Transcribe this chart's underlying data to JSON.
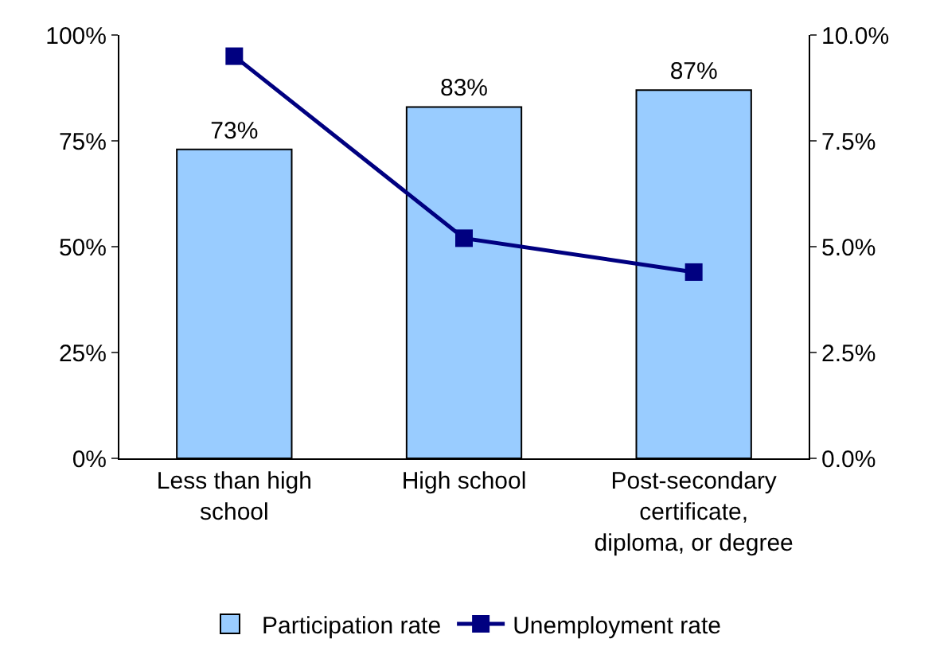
{
  "chart_data": {
    "type": "bar",
    "categories": [
      "Less than high school",
      "High school",
      "Post-secondary certificate, diploma, or degree"
    ],
    "series": [
      {
        "name": "Participation rate",
        "color": "#99ccff",
        "values": [
          73,
          83,
          87
        ],
        "value_labels": [
          "73%",
          "83%",
          "87%"
        ]
      },
      {
        "name": "Unemployment rate",
        "type": "line",
        "axis": "y2",
        "color": "#000080",
        "values": [
          9.5,
          5.2,
          4.4
        ],
        "marker": "square"
      }
    ],
    "ylim": [
      0,
      100
    ],
    "yticks": [
      {
        "value": 0,
        "label": "0%"
      },
      {
        "value": 25,
        "label": "25%"
      },
      {
        "value": 50,
        "label": "50%"
      },
      {
        "value": 75,
        "label": "75%"
      },
      {
        "value": 100,
        "label": "100%"
      }
    ],
    "y2lim": [
      0,
      10
    ],
    "y2ticks": [
      {
        "value": 0,
        "label": "0.0%"
      },
      {
        "value": 2.5,
        "label": "2.5%"
      },
      {
        "value": 5,
        "label": "5.0%"
      },
      {
        "value": 7.5,
        "label": "7.5%"
      },
      {
        "value": 10,
        "label": "10.0%"
      }
    ],
    "legend": "bottom"
  }
}
